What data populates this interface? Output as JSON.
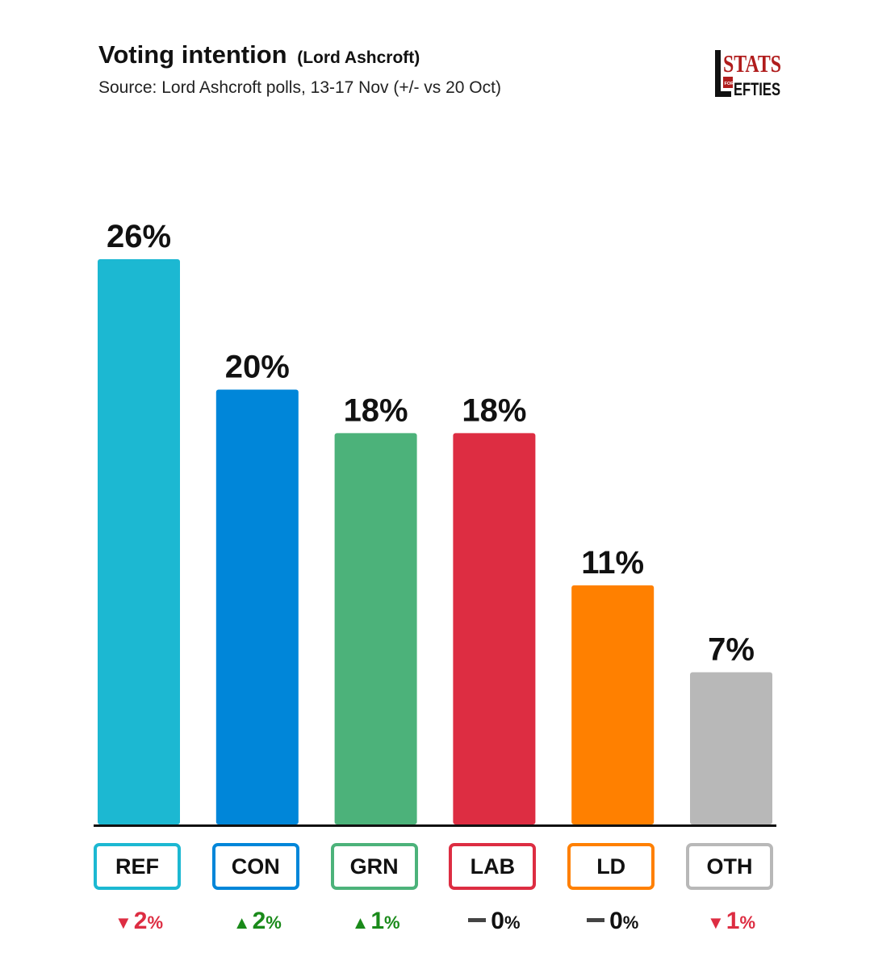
{
  "header": {
    "title": "Voting intention",
    "title_suffix": "(Lord Ashcroft)",
    "subtitle": "Source: Lord Ashcroft polls, 13-17 Nov (+/- vs 20 Oct)"
  },
  "logo": {
    "line1": "STATS",
    "line2_small": "FOR",
    "line2": "EFTIES",
    "color": "#b01c1c"
  },
  "chart_data": {
    "type": "bar",
    "title": "Voting intention (Lord Ashcroft)",
    "categories": [
      "REF",
      "CON",
      "GRN",
      "LAB",
      "LD",
      "OTH"
    ],
    "values": [
      26,
      20,
      18,
      18,
      11,
      7
    ],
    "value_labels": [
      "26%",
      "20%",
      "18%",
      "18%",
      "11%",
      "7%"
    ],
    "colors": [
      "#1cb8d2",
      "#0086d9",
      "#4cb27a",
      "#dd2d42",
      "#ff8000",
      "#b8b8b8"
    ],
    "changes": [
      {
        "direction": "down",
        "value": "2",
        "unit": "%"
      },
      {
        "direction": "up",
        "value": "2",
        "unit": "%"
      },
      {
        "direction": "up",
        "value": "1",
        "unit": "%"
      },
      {
        "direction": "none",
        "value": "0",
        "unit": "%"
      },
      {
        "direction": "none",
        "value": "0",
        "unit": "%"
      },
      {
        "direction": "down",
        "value": "1",
        "unit": "%"
      }
    ],
    "change_colors": {
      "up": "#1a8a1a",
      "down": "#dd2d42",
      "none": "#111111"
    },
    "ylim": [
      0,
      26
    ],
    "grid": false,
    "legend": "none",
    "xlabel": "",
    "ylabel": ""
  }
}
